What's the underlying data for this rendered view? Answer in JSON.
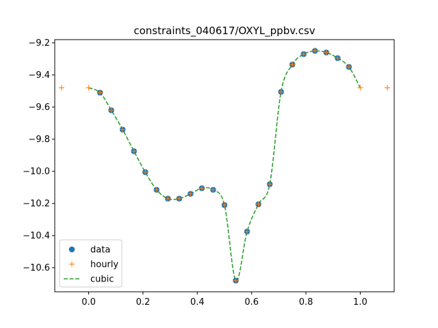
{
  "chart_data": {
    "type": "line",
    "title": "constraints_040617/OXYL_ppbv.csv",
    "xlabel": "",
    "ylabel": "",
    "xlim": [
      -0.125,
      1.125
    ],
    "ylim": [
      -10.75,
      -9.18
    ],
    "x_ticks": [
      0.0,
      0.2,
      0.4,
      0.6,
      0.8,
      1.0
    ],
    "x_tick_labels": [
      "0.0",
      "0.2",
      "0.4",
      "0.6",
      "0.8",
      "1.0"
    ],
    "y_ticks": [
      -9.2,
      -9.4,
      -9.6,
      -9.8,
      -10.0,
      -10.2,
      -10.4,
      -10.6
    ],
    "y_tick_labels": [
      "−9.2",
      "−9.4",
      "−9.6",
      "−9.8",
      "−10.0",
      "−10.2",
      "−10.4",
      "−10.6"
    ],
    "grid": false,
    "legend_position": "lower-left",
    "series": [
      {
        "name": "data",
        "style": "marker-circle",
        "color": "#1f77b4",
        "x": [
          0.0417,
          0.0833,
          0.125,
          0.1667,
          0.2083,
          0.25,
          0.2917,
          0.3333,
          0.375,
          0.4167,
          0.4583,
          0.5,
          0.5417,
          0.5833,
          0.625,
          0.6667,
          0.7083,
          0.75,
          0.7917,
          0.8333,
          0.875,
          0.9167,
          0.9583
        ],
        "y": [
          -9.51,
          -9.62,
          -9.74,
          -9.875,
          -10.005,
          -10.115,
          -10.17,
          -10.17,
          -10.14,
          -10.105,
          -10.115,
          -10.21,
          -10.68,
          -10.375,
          -10.205,
          -10.08,
          -9.505,
          -9.335,
          -9.27,
          -9.25,
          -9.26,
          -9.295,
          -9.35
        ]
      },
      {
        "name": "hourly",
        "style": "marker-plus",
        "color": "#ff7f0e",
        "x": [
          -0.1,
          0.0,
          0.0417,
          0.0833,
          0.125,
          0.1667,
          0.2083,
          0.25,
          0.2917,
          0.3333,
          0.375,
          0.4167,
          0.4583,
          0.5,
          0.5417,
          0.5833,
          0.625,
          0.6667,
          0.7083,
          0.75,
          0.7917,
          0.8333,
          0.875,
          0.9167,
          0.9583,
          1.0,
          1.1
        ],
        "y": [
          -9.48,
          -9.48,
          -9.51,
          -9.62,
          -9.74,
          -9.875,
          -10.005,
          -10.115,
          -10.17,
          -10.17,
          -10.14,
          -10.105,
          -10.115,
          -10.21,
          -10.68,
          -10.375,
          -10.205,
          -10.08,
          -9.505,
          -9.335,
          -9.27,
          -9.25,
          -9.26,
          -9.295,
          -9.35,
          -9.48,
          -9.48
        ]
      },
      {
        "name": "cubic",
        "style": "dashed-line",
        "color": "#2ca02c",
        "x": [
          0.0,
          0.0417,
          0.0833,
          0.125,
          0.1667,
          0.2083,
          0.25,
          0.2917,
          0.3333,
          0.375,
          0.4167,
          0.4583,
          0.5,
          0.5417,
          0.5833,
          0.625,
          0.6667,
          0.7083,
          0.75,
          0.7917,
          0.8333,
          0.875,
          0.9167,
          0.9583,
          1.0
        ],
        "y": [
          -9.48,
          -9.51,
          -9.62,
          -9.74,
          -9.875,
          -10.005,
          -10.115,
          -10.17,
          -10.17,
          -10.14,
          -10.105,
          -10.115,
          -10.21,
          -10.68,
          -10.375,
          -10.205,
          -10.08,
          -9.505,
          -9.335,
          -9.27,
          -9.25,
          -9.26,
          -9.295,
          -9.35,
          -9.48
        ]
      }
    ]
  }
}
